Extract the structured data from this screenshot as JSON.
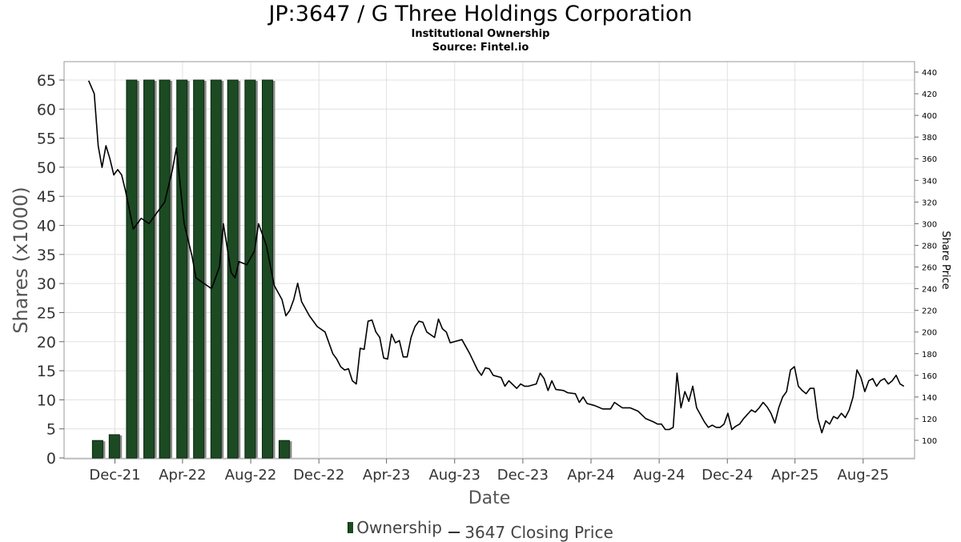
{
  "title": "JP:3647 / G Three Holdings Corporation",
  "subtitle1": "Institutional Ownership",
  "subtitle2": "Source: Fintel.io",
  "legend": {
    "ownership": "Ownership",
    "price": "3647 Closing Price"
  },
  "colors": {
    "bar": "#1c4a23",
    "bar_shadow": "#8a8a8a",
    "line": "#000000",
    "grid": "#e0e0e0"
  },
  "chart_data": {
    "type": "bar",
    "xlabel": "Date",
    "ylabel": "Shares (x1000)",
    "y2label": "Share Price",
    "ylim": [
      0,
      65
    ],
    "yticks": [
      0,
      5,
      10,
      15,
      20,
      25,
      30,
      35,
      40,
      45,
      50,
      55,
      60,
      65
    ],
    "y2lim": [
      85,
      440
    ],
    "y2ticks": [
      100,
      120,
      140,
      160,
      180,
      200,
      220,
      240,
      260,
      280,
      300,
      320,
      340,
      360,
      380,
      400,
      420,
      440
    ],
    "xlim": [
      "2021-09-01",
      "2025-11-01"
    ],
    "xticks": [
      {
        "label": "Dec-21",
        "date": "2021-12-01"
      },
      {
        "label": "Apr-22",
        "date": "2022-04-01"
      },
      {
        "label": "Aug-22",
        "date": "2022-08-01"
      },
      {
        "label": "Dec-22",
        "date": "2022-12-01"
      },
      {
        "label": "Apr-23",
        "date": "2023-04-01"
      },
      {
        "label": "Aug-23",
        "date": "2023-08-01"
      },
      {
        "label": "Dec-23",
        "date": "2023-12-01"
      },
      {
        "label": "Apr-24",
        "date": "2024-04-01"
      },
      {
        "label": "Aug-24",
        "date": "2024-08-01"
      },
      {
        "label": "Dec-24",
        "date": "2024-12-01"
      },
      {
        "label": "Apr-25",
        "date": "2025-04-01"
      },
      {
        "label": "Aug-25",
        "date": "2025-08-01"
      }
    ],
    "series": [
      {
        "name": "Ownership",
        "kind": "bar",
        "points": [
          {
            "date": "2021-10-31",
            "value": 3
          },
          {
            "date": "2021-11-30",
            "value": 4
          },
          {
            "date": "2021-12-31",
            "value": 65
          },
          {
            "date": "2022-01-31",
            "value": 65
          },
          {
            "date": "2022-02-28",
            "value": 65
          },
          {
            "date": "2022-03-31",
            "value": 65
          },
          {
            "date": "2022-04-30",
            "value": 65
          },
          {
            "date": "2022-05-31",
            "value": 65
          },
          {
            "date": "2022-06-30",
            "value": 65
          },
          {
            "date": "2022-07-31",
            "value": 65
          },
          {
            "date": "2022-08-31",
            "value": 65
          },
          {
            "date": "2022-09-30",
            "value": 3
          }
        ]
      },
      {
        "name": "3647 Closing Price",
        "kind": "line",
        "points": [
          [
            "2021-10-15",
            432
          ],
          [
            "2021-10-25",
            420
          ],
          [
            "2021-11-01",
            372
          ],
          [
            "2021-11-08",
            352
          ],
          [
            "2021-11-15",
            372
          ],
          [
            "2021-11-22",
            360
          ],
          [
            "2021-11-29",
            345
          ],
          [
            "2021-12-06",
            350
          ],
          [
            "2021-12-13",
            345
          ],
          [
            "2021-12-20",
            330
          ],
          [
            "2022-01-03",
            295
          ],
          [
            "2022-01-17",
            305
          ],
          [
            "2022-01-31",
            300
          ],
          [
            "2022-02-14",
            310
          ],
          [
            "2022-02-28",
            320
          ],
          [
            "2022-03-14",
            350
          ],
          [
            "2022-03-21",
            370
          ],
          [
            "2022-04-04",
            300
          ],
          [
            "2022-04-18",
            270
          ],
          [
            "2022-04-25",
            250
          ],
          [
            "2022-05-09",
            245
          ],
          [
            "2022-05-23",
            240
          ],
          [
            "2022-06-06",
            260
          ],
          [
            "2022-06-13",
            300
          ],
          [
            "2022-06-27",
            255
          ],
          [
            "2022-07-04",
            250
          ],
          [
            "2022-07-11",
            265
          ],
          [
            "2022-07-25",
            262
          ],
          [
            "2022-08-08",
            275
          ],
          [
            "2022-08-15",
            300
          ],
          [
            "2022-08-29",
            280
          ],
          [
            "2022-09-12",
            243
          ],
          [
            "2022-09-26",
            230
          ],
          [
            "2022-10-03",
            215
          ],
          [
            "2022-10-10",
            220
          ],
          [
            "2022-10-17",
            230
          ],
          [
            "2022-10-24",
            245
          ],
          [
            "2022-10-31",
            228
          ],
          [
            "2022-11-14",
            215
          ],
          [
            "2022-11-28",
            205
          ],
          [
            "2022-12-12",
            200
          ],
          [
            "2022-12-26",
            180
          ],
          [
            "2023-01-02",
            175
          ],
          [
            "2023-01-09",
            168
          ],
          [
            "2023-01-16",
            165
          ],
          [
            "2023-01-23",
            166
          ],
          [
            "2023-01-30",
            155
          ],
          [
            "2023-02-06",
            152
          ],
          [
            "2023-02-13",
            185
          ],
          [
            "2023-02-20",
            184
          ],
          [
            "2023-02-27",
            210
          ],
          [
            "2023-03-06",
            211
          ],
          [
            "2023-03-13",
            200
          ],
          [
            "2023-03-20",
            195
          ],
          [
            "2023-03-27",
            176
          ],
          [
            "2023-04-03",
            175
          ],
          [
            "2023-04-10",
            198
          ],
          [
            "2023-04-17",
            190
          ],
          [
            "2023-04-24",
            192
          ],
          [
            "2023-05-01",
            177
          ],
          [
            "2023-05-08",
            177
          ],
          [
            "2023-05-15",
            195
          ],
          [
            "2023-05-22",
            205
          ],
          [
            "2023-05-29",
            210
          ],
          [
            "2023-06-05",
            209
          ],
          [
            "2023-06-12",
            200
          ],
          [
            "2023-06-26",
            195
          ],
          [
            "2023-07-03",
            212
          ],
          [
            "2023-07-10",
            203
          ],
          [
            "2023-07-17",
            200
          ],
          [
            "2023-07-24",
            190
          ],
          [
            "2023-08-07",
            192
          ],
          [
            "2023-08-14",
            193
          ],
          [
            "2023-08-28",
            180
          ],
          [
            "2023-09-11",
            165
          ],
          [
            "2023-09-18",
            160
          ],
          [
            "2023-09-25",
            167
          ],
          [
            "2023-10-02",
            166
          ],
          [
            "2023-10-09",
            160
          ],
          [
            "2023-10-23",
            158
          ],
          [
            "2023-10-30",
            150
          ],
          [
            "2023-11-06",
            155
          ],
          [
            "2023-11-20",
            148
          ],
          [
            "2023-11-27",
            152
          ],
          [
            "2023-12-04",
            150
          ],
          [
            "2023-12-11",
            150
          ],
          [
            "2023-12-25",
            152
          ],
          [
            "2024-01-01",
            162
          ],
          [
            "2024-01-08",
            157
          ],
          [
            "2024-01-15",
            146
          ],
          [
            "2024-01-22",
            155
          ],
          [
            "2024-01-29",
            147
          ],
          [
            "2024-02-12",
            146
          ],
          [
            "2024-02-19",
            144
          ],
          [
            "2024-03-04",
            143
          ],
          [
            "2024-03-11",
            135
          ],
          [
            "2024-03-18",
            140
          ],
          [
            "2024-03-25",
            134
          ],
          [
            "2024-04-08",
            132
          ],
          [
            "2024-04-22",
            129
          ],
          [
            "2024-05-06",
            129
          ],
          [
            "2024-05-13",
            135
          ],
          [
            "2024-05-27",
            130
          ],
          [
            "2024-06-10",
            130
          ],
          [
            "2024-06-24",
            127
          ],
          [
            "2024-07-08",
            120
          ],
          [
            "2024-07-22",
            117
          ],
          [
            "2024-07-29",
            115
          ],
          [
            "2024-08-05",
            115
          ],
          [
            "2024-08-12",
            110
          ],
          [
            "2024-08-19",
            110
          ],
          [
            "2024-08-26",
            112
          ],
          [
            "2024-09-02",
            162
          ],
          [
            "2024-09-09",
            130
          ],
          [
            "2024-09-16",
            145
          ],
          [
            "2024-09-23",
            136
          ],
          [
            "2024-09-30",
            150
          ],
          [
            "2024-10-07",
            130
          ],
          [
            "2024-10-21",
            117
          ],
          [
            "2024-10-28",
            112
          ],
          [
            "2024-11-04",
            114
          ],
          [
            "2024-11-11",
            112
          ],
          [
            "2024-11-18",
            112
          ],
          [
            "2024-11-25",
            115
          ],
          [
            "2024-12-02",
            125
          ],
          [
            "2024-12-09",
            110
          ],
          [
            "2024-12-16",
            113
          ],
          [
            "2024-12-23",
            115
          ],
          [
            "2024-12-30",
            120
          ],
          [
            "2025-01-06",
            124
          ],
          [
            "2025-01-13",
            128
          ],
          [
            "2025-01-20",
            126
          ],
          [
            "2025-01-27",
            130
          ],
          [
            "2025-02-03",
            135
          ],
          [
            "2025-02-10",
            131
          ],
          [
            "2025-02-17",
            125
          ],
          [
            "2025-02-24",
            116
          ],
          [
            "2025-03-03",
            130
          ],
          [
            "2025-03-10",
            140
          ],
          [
            "2025-03-17",
            145
          ],
          [
            "2025-03-24",
            165
          ],
          [
            "2025-03-31",
            168
          ],
          [
            "2025-04-07",
            150
          ],
          [
            "2025-04-14",
            146
          ],
          [
            "2025-04-21",
            143
          ],
          [
            "2025-04-28",
            148
          ],
          [
            "2025-05-05",
            148
          ],
          [
            "2025-05-12",
            120
          ],
          [
            "2025-05-19",
            107
          ],
          [
            "2025-05-26",
            118
          ],
          [
            "2025-06-02",
            115
          ],
          [
            "2025-06-09",
            122
          ],
          [
            "2025-06-16",
            120
          ],
          [
            "2025-06-23",
            125
          ],
          [
            "2025-06-30",
            121
          ],
          [
            "2025-07-07",
            128
          ],
          [
            "2025-07-14",
            140
          ],
          [
            "2025-07-21",
            165
          ],
          [
            "2025-07-28",
            158
          ],
          [
            "2025-08-04",
            145
          ],
          [
            "2025-08-11",
            155
          ],
          [
            "2025-08-18",
            157
          ],
          [
            "2025-08-25",
            150
          ],
          [
            "2025-09-01",
            155
          ],
          [
            "2025-09-08",
            157
          ],
          [
            "2025-09-15",
            152
          ],
          [
            "2025-09-22",
            155
          ],
          [
            "2025-09-29",
            160
          ],
          [
            "2025-10-06",
            152
          ],
          [
            "2025-10-13",
            150
          ]
        ]
      }
    ],
    "grid": true,
    "legend_position": "bottom"
  }
}
